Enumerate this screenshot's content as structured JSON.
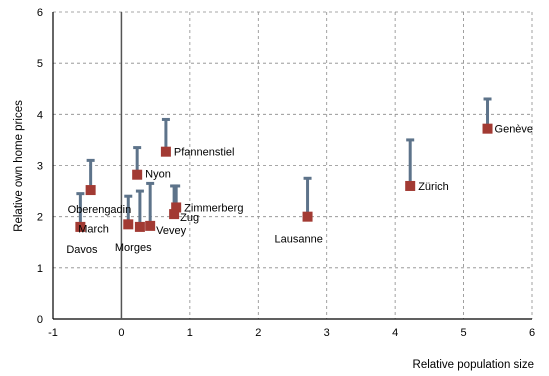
{
  "chart_data": {
    "type": "scatter",
    "xlabel": "Relative population size",
    "ylabel": "Relative own home prices",
    "xlim": [
      -1,
      6
    ],
    "ylim": [
      0,
      6
    ],
    "xticks": [
      "-1",
      "0",
      "1",
      "2",
      "3",
      "4",
      "5",
      "6"
    ],
    "yticks": [
      "0",
      "1",
      "2",
      "3",
      "4",
      "5",
      "6"
    ],
    "grid": "dashed",
    "marker_color": "#a23a33",
    "bar_color": "#5d738a",
    "points": [
      {
        "name": "Davos",
        "x": -0.6,
        "y": 1.8,
        "high": 2.45
      },
      {
        "name": "Oberengadin",
        "x": -0.45,
        "y": 2.52,
        "high": 3.1
      },
      {
        "name": "March",
        "x": 0.1,
        "y": 1.85,
        "high": 2.4
      },
      {
        "name": "Morges",
        "x": 0.27,
        "y": 1.8,
        "high": 2.5
      },
      {
        "name": "Vevey",
        "x": 0.42,
        "y": 1.82,
        "high": 2.65
      },
      {
        "name": "Nyon",
        "x": 0.23,
        "y": 2.82,
        "high": 3.35
      },
      {
        "name": "Pfannenstiel",
        "x": 0.65,
        "y": 3.27,
        "high": 3.9
      },
      {
        "name": "Zimmerberg",
        "x": 0.8,
        "y": 2.18,
        "high": 2.6
      },
      {
        "name": "Zug",
        "x": 0.77,
        "y": 2.05,
        "high": 2.6
      },
      {
        "name": "Lausanne",
        "x": 2.72,
        "y": 2.0,
        "high": 2.75
      },
      {
        "name": "Zürich",
        "x": 4.22,
        "y": 2.6,
        "high": 3.5
      },
      {
        "name": "Genève",
        "x": 5.35,
        "y": 3.72,
        "high": 4.3
      }
    ]
  }
}
